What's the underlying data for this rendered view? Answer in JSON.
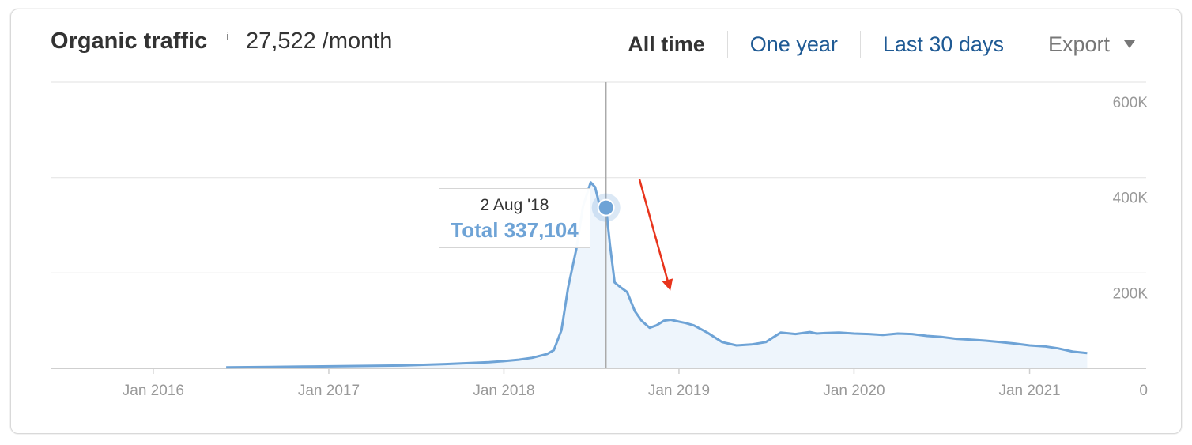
{
  "header": {
    "title": "Organic traffic",
    "info_icon": "i",
    "value": "27,522 /month",
    "tabs": [
      {
        "label": "All time",
        "active": true
      },
      {
        "label": "One year",
        "active": false
      },
      {
        "label": "Last 30 days",
        "active": false
      }
    ],
    "export_label": "Export"
  },
  "tooltip": {
    "date": "2 Aug '18",
    "total": "Total 337,104"
  },
  "colors": {
    "line": "#6ea3d6",
    "fill": "#eef5fc",
    "arrow": "#e8341c",
    "link": "#1f5a94"
  },
  "chart_data": {
    "type": "area",
    "title": "Organic traffic",
    "x_ticks": [
      "Jan 2016",
      "Jan 2017",
      "Jan 2018",
      "Jan 2019",
      "Jan 2020",
      "Jan 2021"
    ],
    "y_ticks": [
      "0",
      "200K",
      "400K",
      "600K"
    ],
    "ylim": [
      0,
      600000
    ],
    "xlim": [
      "2015-06-01",
      "2021-09-01"
    ],
    "grid": true,
    "highlight": {
      "date": "2018-08-02",
      "value": 337104
    },
    "series": [
      {
        "x": [
          "2016-06-01",
          "2016-09-01",
          "2016-12-01",
          "2017-03-01",
          "2017-06-01",
          "2017-09-01",
          "2017-12-01",
          "2018-01-01",
          "2018-02-01",
          "2018-03-01",
          "2018-04-01",
          "2018-04-15",
          "2018-05-01",
          "2018-05-15",
          "2018-06-01",
          "2018-06-15",
          "2018-07-01",
          "2018-07-10",
          "2018-07-20",
          "2018-08-02",
          "2018-08-10",
          "2018-08-20",
          "2018-09-01",
          "2018-09-15",
          "2018-10-01",
          "2018-10-15",
          "2018-11-01",
          "2018-11-15",
          "2018-12-01",
          "2018-12-15",
          "2019-01-01",
          "2019-01-15",
          "2019-02-01",
          "2019-03-01",
          "2019-04-01",
          "2019-05-01",
          "2019-06-01",
          "2019-07-01",
          "2019-08-01",
          "2019-09-01",
          "2019-10-01",
          "2019-10-15",
          "2019-11-01",
          "2019-12-01",
          "2020-01-01",
          "2020-02-01",
          "2020-03-01",
          "2020-04-01",
          "2020-05-01",
          "2020-06-01",
          "2020-07-01",
          "2020-08-01",
          "2020-09-01",
          "2020-10-01",
          "2020-11-01",
          "2020-12-01",
          "2021-01-01",
          "2021-02-01",
          "2021-03-01",
          "2021-04-01",
          "2021-05-01"
        ],
        "values": [
          2000,
          3000,
          4000,
          5000,
          6000,
          9000,
          13000,
          15000,
          18000,
          22000,
          30000,
          38000,
          80000,
          170000,
          250000,
          340000,
          390000,
          380000,
          340000,
          337104,
          260000,
          180000,
          170000,
          160000,
          120000,
          100000,
          85000,
          90000,
          100000,
          102000,
          98000,
          95000,
          90000,
          75000,
          55000,
          48000,
          50000,
          55000,
          75000,
          72000,
          76000,
          73000,
          74000,
          75000,
          73000,
          72000,
          70000,
          73000,
          72000,
          68000,
          66000,
          62000,
          60000,
          58000,
          55000,
          52000,
          48000,
          46000,
          42000,
          35000,
          32000
        ]
      }
    ]
  }
}
